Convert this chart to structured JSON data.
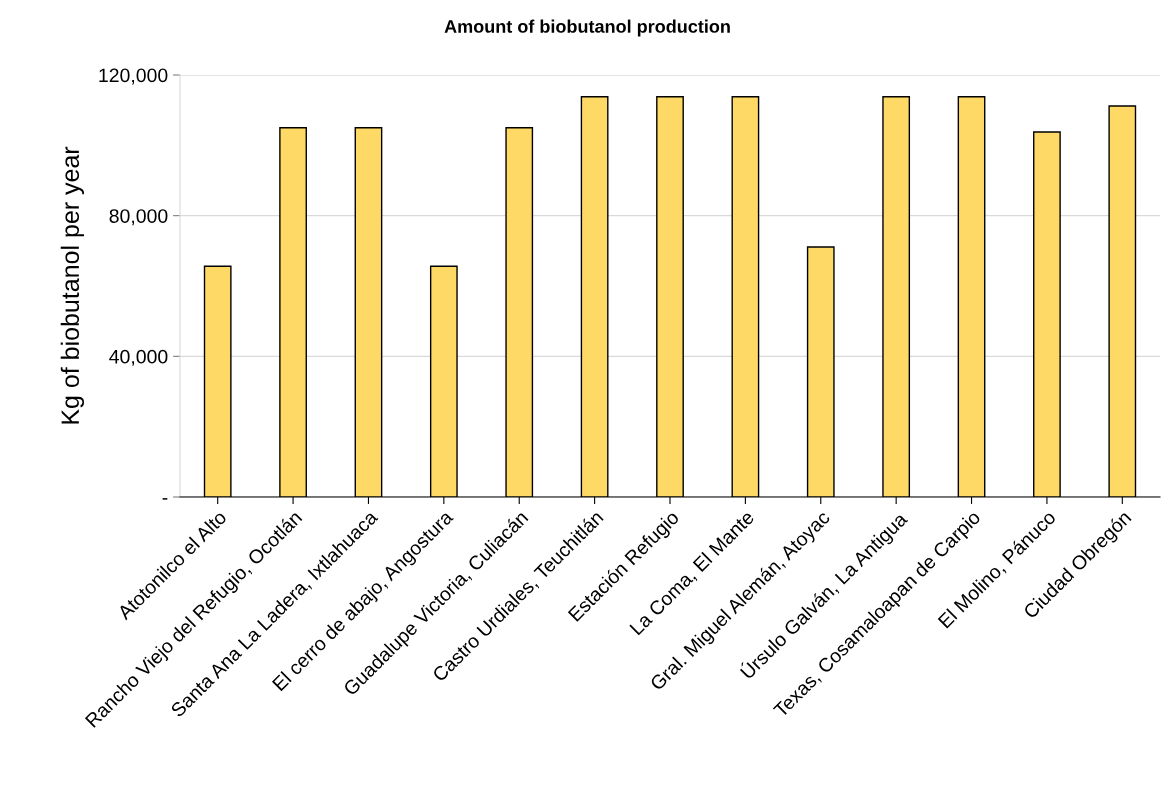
{
  "chart_data": {
    "type": "bar",
    "title": "Amount of biobutanol production",
    "ylabel": "Kg of biobutanol per year",
    "categories": [
      "Atotonilco el Alto",
      "Rancho Viejo del Refugio, Ocotlán",
      "Santa Ana La Ladera, Ixtlahuaca",
      "El cerro de abajo, Angostura",
      "Guadalupe Victoria, Culiacán",
      "Castro Urdiales, Teuchitlán",
      "Estación Refugio",
      "La Coma, El Mante",
      "Gral. Miguel Alemán, Atoyac",
      "Úrsulo Galván, La Antigua",
      "Texas, Cosamaloapan de Carpio",
      "El Molino, Pánuco",
      "Ciudad Obregón"
    ],
    "values": [
      65600,
      105000,
      105000,
      65600,
      105000,
      113800,
      113800,
      113800,
      71100,
      113800,
      113800,
      103800,
      111200
    ],
    "color": "#ffd966",
    "ylim": [
      0,
      120000
    ],
    "yticks": [
      {
        "value": 0,
        "label": "-"
      },
      {
        "value": 40000,
        "label": "40,000"
      },
      {
        "value": 80000,
        "label": "80,000"
      },
      {
        "value": 120000,
        "label": "120,000"
      }
    ],
    "grid": "y"
  }
}
